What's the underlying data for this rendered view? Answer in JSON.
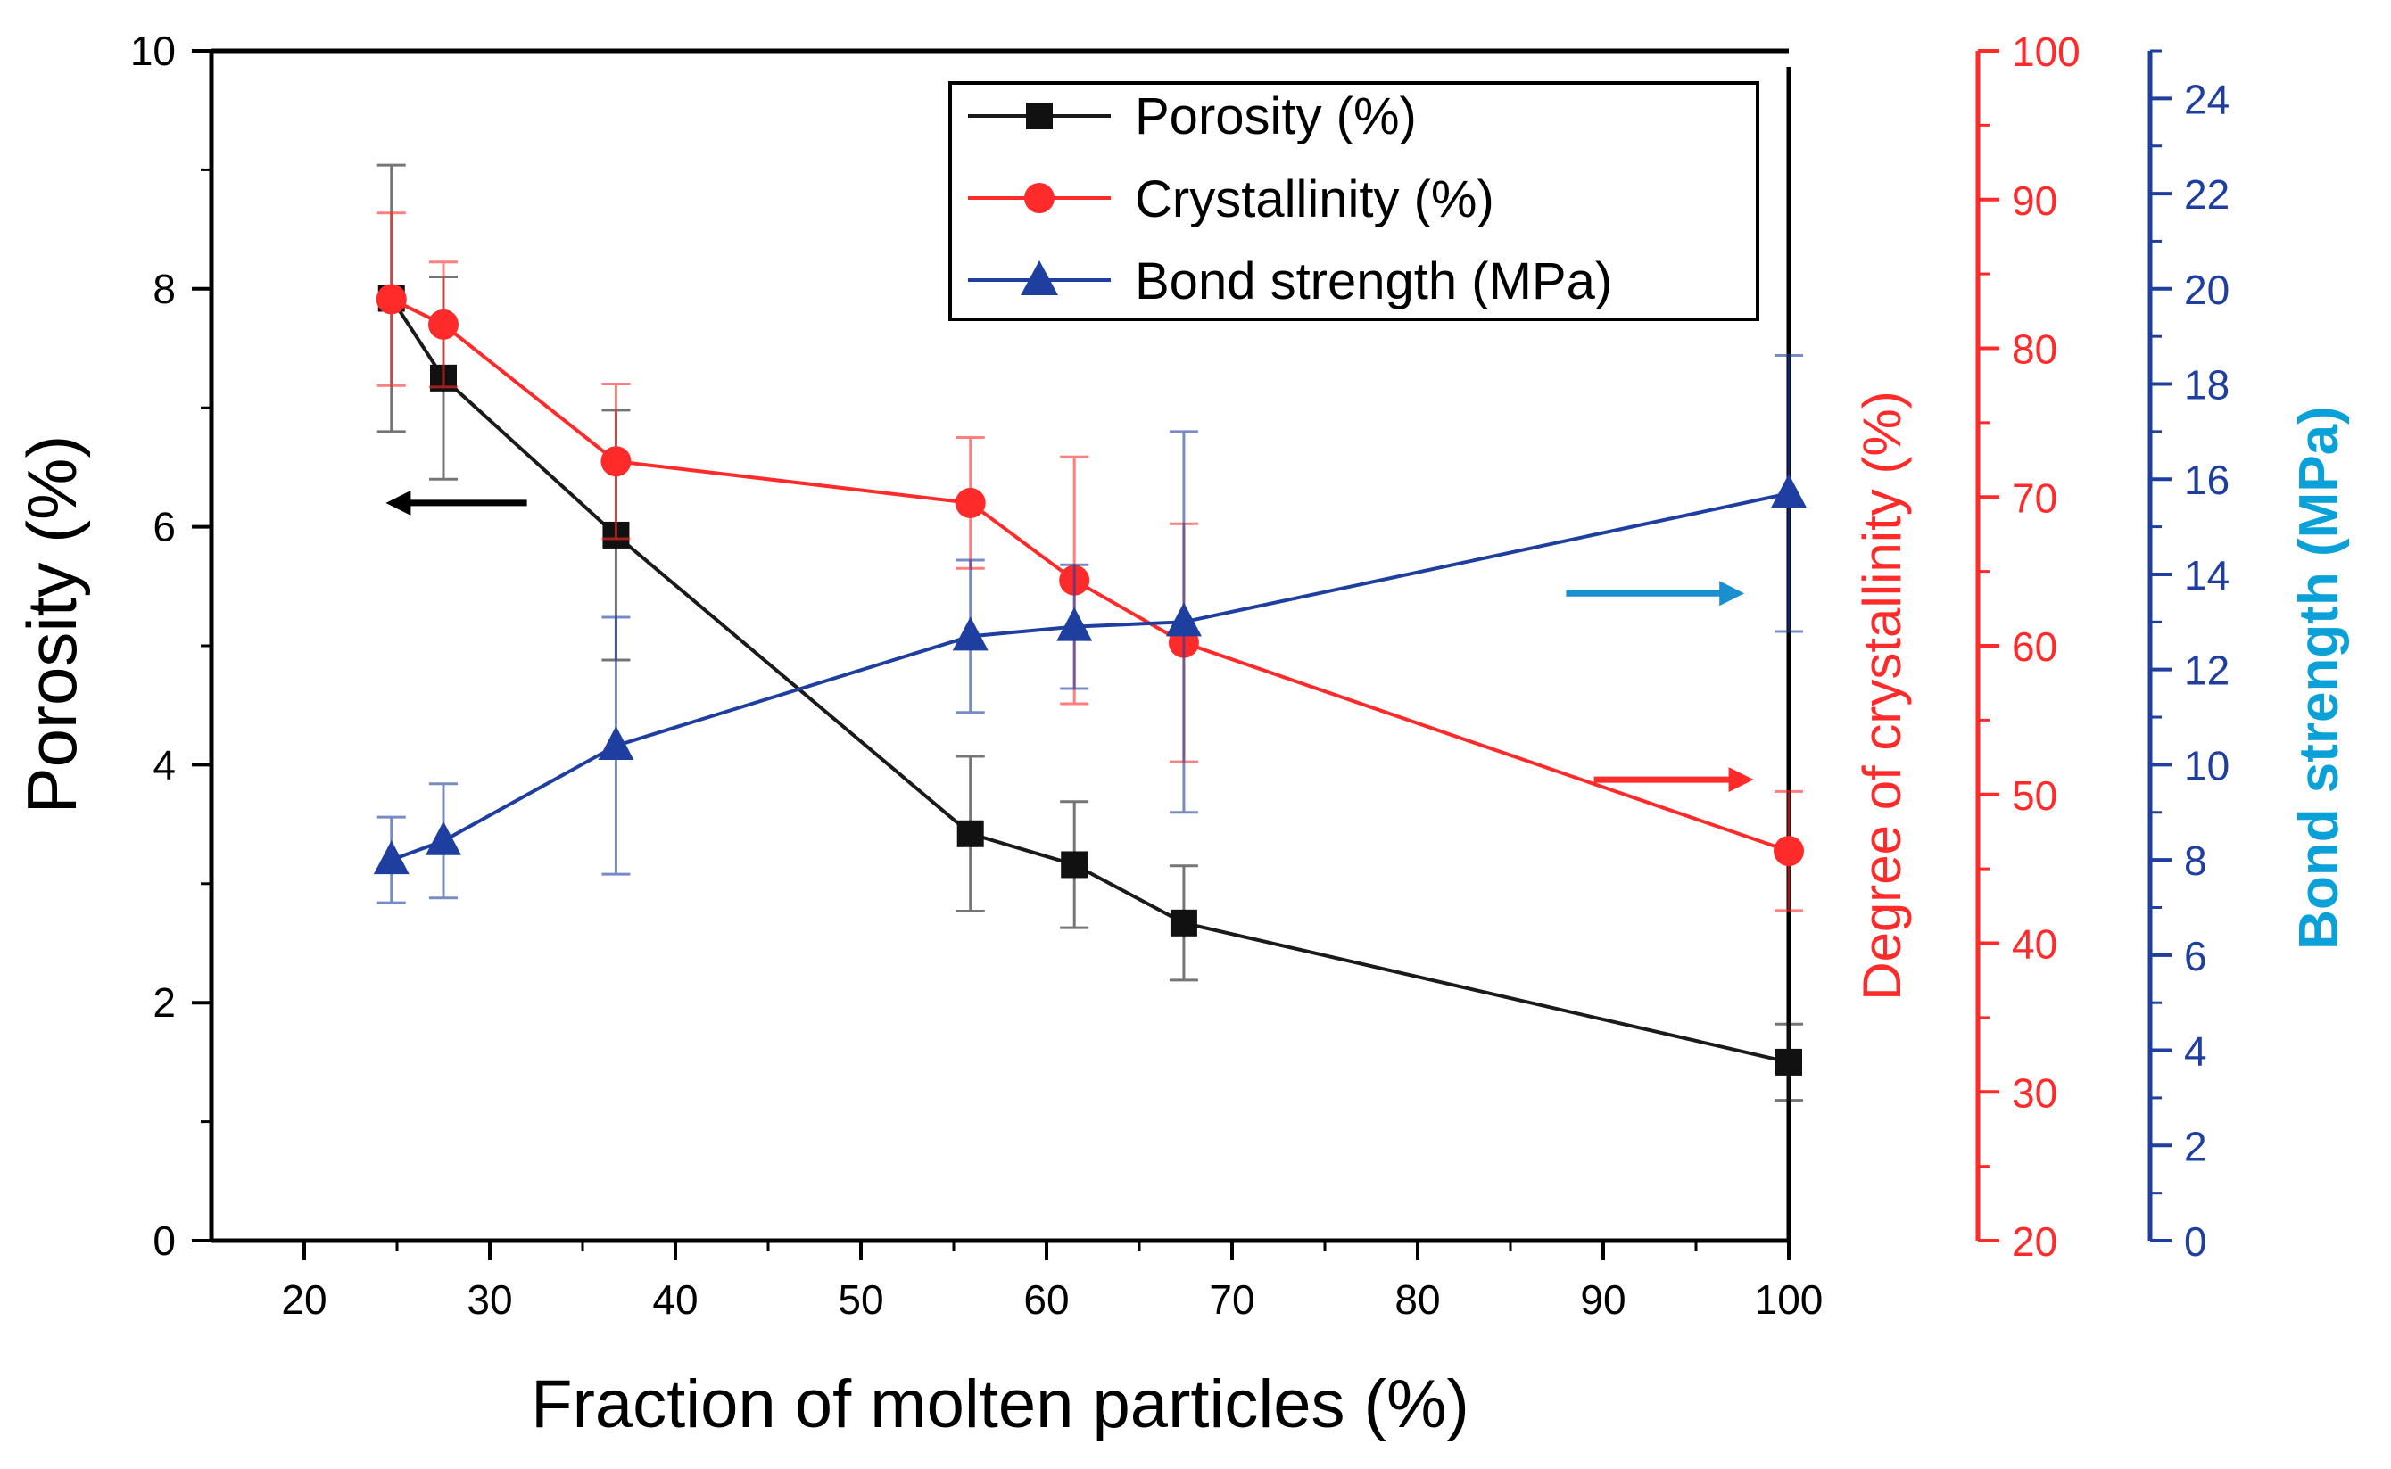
{
  "chart_data": {
    "type": "line",
    "title": "",
    "xlabel": "Fraction of molten particles  (%)",
    "xlim": [
      15,
      100
    ],
    "xticks": [
      20,
      30,
      40,
      50,
      60,
      70,
      80,
      90,
      100
    ],
    "y_axes": {
      "left": {
        "label": "Porosity (%)",
        "lim": [
          0,
          10
        ],
        "ticks": [
          0,
          2,
          4,
          6,
          8,
          10
        ],
        "color": "#000000"
      },
      "right_red": {
        "label": "Degree of crystallinity (%)",
        "lim": [
          20,
          100
        ],
        "ticks": [
          20,
          30,
          40,
          50,
          60,
          70,
          80,
          90,
          100
        ],
        "color": "#ff2a2a"
      },
      "right_blue": {
        "label": "Bond strength (MPa)",
        "lim": [
          0,
          25
        ],
        "ticks": [
          0,
          2,
          4,
          6,
          8,
          10,
          12,
          14,
          16,
          18,
          20,
          22,
          24
        ],
        "color": "#1f3fa0",
        "label_color": "#0aa0d8"
      }
    },
    "series": [
      {
        "name": "Porosity (%)",
        "axis": "left",
        "color": "#1a1a1a",
        "marker": "square",
        "x": [
          24.7,
          27.5,
          36.8,
          55.9,
          61.5,
          67.4,
          100
        ],
        "y": [
          7.92,
          7.25,
          5.93,
          3.42,
          3.16,
          2.67,
          1.5
        ],
        "err": [
          1.12,
          0.85,
          1.05,
          0.65,
          0.53,
          0.48,
          0.32
        ]
      },
      {
        "name": "Crystallinity (%)",
        "axis": "right_red",
        "color": "#ff2a2a",
        "marker": "circle",
        "x": [
          24.7,
          27.5,
          36.8,
          55.9,
          61.5,
          67.4,
          100
        ],
        "y": [
          83.3,
          81.6,
          72.4,
          69.6,
          64.4,
          60.2,
          46.2
        ],
        "err": [
          5.8,
          4.2,
          5.2,
          4.4,
          8.3,
          8.0,
          4.0
        ]
      },
      {
        "name": "Bond strength (MPa)",
        "axis": "right_blue",
        "color": "#1f3fa0",
        "marker": "triangle",
        "x": [
          24.7,
          27.5,
          36.8,
          55.9,
          61.5,
          67.4,
          100
        ],
        "y": [
          8.0,
          8.4,
          10.4,
          12.7,
          12.9,
          13.0,
          15.7
        ],
        "err": [
          0.9,
          1.2,
          2.7,
          1.6,
          1.3,
          4.0,
          2.9
        ]
      }
    ],
    "legend": {
      "position": "top-right",
      "entries": [
        "Porosity (%)",
        "Crystallinity (%)",
        "Bond strength (MPa)"
      ]
    },
    "annotations": [
      {
        "type": "arrow",
        "color": "#000000",
        "direction": "left",
        "x": [
          32,
          25
        ],
        "y": 6.2,
        "axis": "left"
      },
      {
        "type": "arrow",
        "color": "#1a8fd0",
        "direction": "right",
        "x": [
          88,
          97
        ],
        "y": 13.6,
        "axis": "right_blue"
      },
      {
        "type": "arrow",
        "color": "#ff2a2a",
        "direction": "right",
        "x": [
          89.5,
          97.5
        ],
        "y": 51,
        "axis": "right_red"
      }
    ]
  }
}
